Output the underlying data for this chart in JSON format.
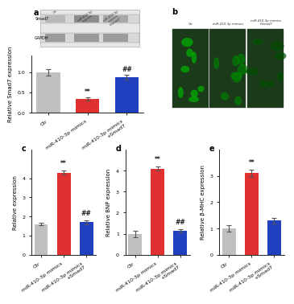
{
  "panel_a_bars": {
    "categories": [
      "Ctr",
      "miR-410-3p mimics",
      "miR-410-3p mimics\n+Smad7"
    ],
    "values": [
      1.0,
      0.35,
      0.88
    ],
    "errors": [
      0.08,
      0.04,
      0.06
    ],
    "colors": [
      "#c0c0c0",
      "#e03030",
      "#2040c0"
    ],
    "ylabel": "Relative Smad7 expression",
    "annotations": [
      "",
      "**",
      "##"
    ]
  },
  "panel_c_bars": {
    "categories": [
      "Ctr",
      "miR-410-3p mimics",
      "miR-410-3p mimics\n+Smad7"
    ],
    "values": [
      1.6,
      4.3,
      1.7
    ],
    "errors": [
      0.07,
      0.12,
      0.1
    ],
    "colors": [
      "#c0c0c0",
      "#e03030",
      "#2040c0"
    ],
    "ylabel": "Relative expression",
    "annotations": [
      "",
      "**",
      "##"
    ]
  },
  "panel_d_bars": {
    "categories": [
      "Ctr",
      "miR-410-3p mimics",
      "miR-410-3p mimics\n+Smad7"
    ],
    "values": [
      1.0,
      4.1,
      1.15
    ],
    "errors": [
      0.15,
      0.1,
      0.08
    ],
    "colors": [
      "#c0c0c0",
      "#e03030",
      "#2040c0"
    ],
    "ylabel": "Relative BNP expression",
    "annotations": [
      "",
      "**",
      "##"
    ]
  },
  "panel_e_bars": {
    "categories": [
      "Ctr",
      "miR-410-3p mimics",
      "miR-410-3p mimics\n+Smad7"
    ],
    "values": [
      1.0,
      3.1,
      1.3
    ],
    "errors": [
      0.12,
      0.15,
      0.1
    ],
    "colors": [
      "#c0c0c0",
      "#e03030",
      "#2040c0"
    ],
    "ylabel": "Relative β-MHC expression",
    "annotations": [
      "",
      "**",
      ""
    ]
  },
  "wb_label1": "Smad7",
  "wb_label2": "GAPDH",
  "panel_labels": [
    "a",
    "b",
    "c",
    "d",
    "e"
  ],
  "bg_color": "#ffffff",
  "tick_fontsize": 4.5,
  "label_fontsize": 5.0,
  "annot_fontsize": 5.5
}
